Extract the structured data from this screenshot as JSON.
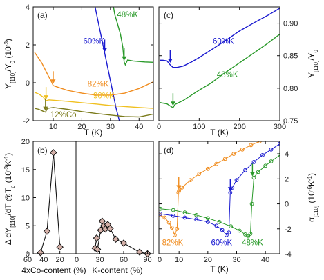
{
  "chart_data": [
    {
      "panel": "(a)",
      "type": "line",
      "xlabel": "T (K)",
      "ylabel_main": "Y",
      "ylabel_sub": "[110]",
      "ylabel_mid": "/Y",
      "ylabel_sub2": "0",
      "ylabel_tail": " (10",
      "ylabel_exp": "-3",
      "ylabel_end": ")",
      "xlim": [
        3,
        45
      ],
      "ylim": [
        -2,
        4
      ],
      "xticks": [
        10,
        20,
        30,
        40
      ],
      "yticks": [
        -2,
        0,
        2,
        4
      ],
      "series": [
        {
          "name": "48%K",
          "color": "#2a9a2a",
          "x": [
            31,
            31.5,
            32.5,
            33.5,
            34.3,
            34.8,
            35.2,
            36,
            38,
            40,
            42,
            45
          ],
          "y": [
            4.05,
            3.6,
            3.1,
            2.55,
            1.9,
            1.1,
            0.95,
            1.2,
            1.15,
            1.12,
            1.1,
            1.08
          ],
          "label_x": 32.3,
          "label_y": 3.45,
          "arrow": [
            34.8,
            1.1
          ]
        },
        {
          "name": "60%K",
          "color": "#1a1ad0",
          "x": [
            24.5,
            26,
            28,
            30,
            32,
            33.2
          ],
          "y": [
            4.1,
            3.0,
            1.55,
            0.1,
            -1.35,
            -2.05
          ],
          "label_x": 20.5,
          "label_y": 2.05,
          "arrow": [
            28,
            1.55
          ]
        },
        {
          "name": "82%K",
          "color": "#f08c1e",
          "x": [
            3.5,
            6,
            8,
            9.5,
            10,
            12,
            15,
            20,
            25,
            30,
            35,
            40,
            45
          ],
          "y": [
            1.6,
            1.05,
            0.45,
            0.02,
            -0.15,
            -0.25,
            -0.4,
            -0.55,
            -0.65,
            -0.65,
            -0.55,
            -0.3,
            0.05
          ],
          "label_x": 22,
          "label_y": -0.2,
          "arrow": [
            10,
            -0.12
          ]
        },
        {
          "name": "90%K",
          "color": "#f0c020",
          "x": [
            3.5,
            5,
            6.5,
            7.5,
            8.5,
            10,
            15,
            20,
            25,
            30,
            35,
            40,
            45
          ],
          "y": [
            -0.5,
            -0.6,
            -0.75,
            -0.95,
            -0.9,
            -0.92,
            -0.98,
            -1.05,
            -1.12,
            -1.2,
            -1.25,
            -1.3,
            -1.35
          ],
          "label_x": 24,
          "label_y": -0.82,
          "arrow": [
            7.5,
            -0.95
          ]
        },
        {
          "name": "12%Co",
          "color": "#7a7a1a",
          "x": [
            3.5,
            5,
            6.5,
            7.3,
            8,
            10,
            15,
            20,
            25,
            30,
            35,
            40,
            45
          ],
          "y": [
            -1.35,
            -1.4,
            -1.5,
            -1.55,
            -1.35,
            -1.3,
            -1.4,
            -1.52,
            -1.62,
            -1.7,
            -1.78,
            -1.8,
            -1.65
          ],
          "label_x": 9,
          "label_y": -1.82,
          "arrow": [
            7.3,
            -1.55
          ]
        }
      ]
    },
    {
      "panel": "(c)",
      "type": "line",
      "xlabel": "T (K)",
      "ylabel_main": "Y",
      "ylabel_sub": "[110]",
      "ylabel_mid": "/Y",
      "ylabel_sub2": "0",
      "xlim": [
        0,
        300
      ],
      "ylim": [
        0.75,
        0.925
      ],
      "xticks": [
        0,
        100,
        200,
        300
      ],
      "yticks": [
        0.75,
        0.8,
        0.85,
        0.9
      ],
      "ytick_labels": [
        "0.75",
        "0.80",
        "0.85",
        "0.90"
      ],
      "series": [
        {
          "name": "60%K",
          "color": "#1a1ad0",
          "x": [
            2,
            10,
            20,
            28,
            35,
            45,
            60,
            80,
            100,
            130,
            160,
            200,
            240,
            270,
            300
          ],
          "y": [
            0.843,
            0.843,
            0.842,
            0.836,
            0.832,
            0.832,
            0.834,
            0.84,
            0.847,
            0.859,
            0.871,
            0.888,
            0.902,
            0.912,
            0.923
          ],
          "label_x": 160,
          "label_y": 0.868,
          "arrow": [
            28,
            0.837
          ]
        },
        {
          "name": "48%K",
          "color": "#2a9a2a",
          "x": [
            2,
            10,
            20,
            30,
            35,
            40,
            60,
            80,
            100,
            130,
            160,
            200,
            240,
            270,
            300
          ],
          "y": [
            0.778,
            0.777,
            0.776,
            0.772,
            0.77,
            0.775,
            0.781,
            0.789,
            0.797,
            0.808,
            0.822,
            0.839,
            0.856,
            0.869,
            0.883
          ],
          "label_x": 170,
          "label_y": 0.817,
          "arrow": [
            35,
            0.771
          ]
        }
      ]
    },
    {
      "panel": "(b)",
      "type": "scatter",
      "ylabel": "Δ dY",
      "ylabel_sub": "[110]",
      "ylabel_mid": "/dT @T",
      "ylabel_sub2": "c",
      "ylabel_tail": " (10",
      "ylabel_exp": "-3",
      "ylabel_tail2": "K",
      "ylabel_exp2": "-1",
      "ylabel_end": ")",
      "xlabel_left": "4xCo-content (%)",
      "xlabel_right": "K-content (%)",
      "ylim": [
        0,
        20
      ],
      "yticks": [
        0,
        5,
        10,
        15,
        20
      ],
      "left_xlim": [
        60,
        0
      ],
      "left_xticks": [
        60,
        40,
        20
      ],
      "right_xlim": [
        0,
        100
      ],
      "right_xticks": [
        0,
        30,
        60,
        90
      ],
      "left_points": {
        "x": [
          44,
          36,
          28,
          20
        ],
        "y": [
          0.2,
          4.0,
          18.0,
          1.2
        ]
      },
      "right_points": {
        "x": [
          24,
          26,
          27,
          31,
          33,
          35,
          37,
          40,
          43,
          50,
          60,
          80,
          90
        ],
        "y": [
          1.0,
          2.8,
          0.8,
          4.2,
          5.8,
          5.0,
          4.4,
          5.2,
          4.5,
          2.6,
          1.9,
          0.3,
          0.0
        ]
      },
      "marker_fill": "#d4b0a8"
    },
    {
      "panel": "(d)",
      "type": "scatter",
      "xlabel": "T (K)",
      "ylabel": "α",
      "ylabel_sub": "[110]",
      "ylabel_tail": " (10",
      "ylabel_exp": "-6",
      "ylabel_tail2": "K",
      "ylabel_exp2": "-1",
      "ylabel_end": ")",
      "xlim": [
        3,
        45
      ],
      "ylim": [
        -4,
        5
      ],
      "xticks": [
        0,
        10,
        20,
        30,
        40
      ],
      "yticks": [
        -4,
        -2,
        0,
        2,
        4
      ],
      "series": [
        {
          "name": "82%K",
          "color": "#f08c1e",
          "x": [
            3.5,
            5,
            6.5,
            7.5,
            8.5,
            9.3,
            9.8,
            10,
            11,
            14,
            17,
            20,
            23,
            26,
            29,
            32,
            35,
            38,
            42
          ],
          "y": [
            -0.9,
            -1.1,
            -1.5,
            -1.9,
            -2.5,
            -2.0,
            0.9,
            1.05,
            1.3,
            1.9,
            2.4,
            2.8,
            3.2,
            3.6,
            4.0,
            4.35,
            4.7,
            5.0,
            5.2
          ],
          "label_x": 7.8,
          "label_y": -3.3,
          "arrow": [
            9.9,
            1.05
          ]
        },
        {
          "name": "60%K",
          "color": "#1a1ad0",
          "x": [
            3.5,
            8,
            12,
            16,
            20,
            23,
            25,
            26.5,
            27.3,
            27.8,
            28.5,
            30,
            33,
            36,
            39,
            42,
            45
          ],
          "y": [
            -0.8,
            -0.95,
            -1.1,
            -1.25,
            -1.45,
            -1.75,
            -2.1,
            -2.5,
            -2.3,
            0.9,
            1.3,
            1.9,
            2.7,
            3.35,
            3.9,
            4.35,
            4.8
          ],
          "label_x": 24.8,
          "label_y": -3.3,
          "arrow": [
            27.8,
            0.9
          ]
        },
        {
          "name": "48%K",
          "color": "#2a9a2a",
          "x": [
            3.5,
            8,
            12,
            16,
            20,
            24,
            28,
            31,
            33,
            34,
            34.8,
            35.3,
            36,
            37.5,
            40,
            42,
            45
          ],
          "y": [
            -0.4,
            -0.5,
            -0.7,
            -0.9,
            -1.15,
            -1.45,
            -1.8,
            -2.15,
            -2.45,
            -2.6,
            -2.4,
            0.0,
            2.1,
            2.55,
            3.05,
            3.4,
            3.9
          ],
          "label_x": 35.5,
          "label_y": -3.3,
          "arrow": [
            35.5,
            2.1
          ]
        }
      ]
    }
  ]
}
